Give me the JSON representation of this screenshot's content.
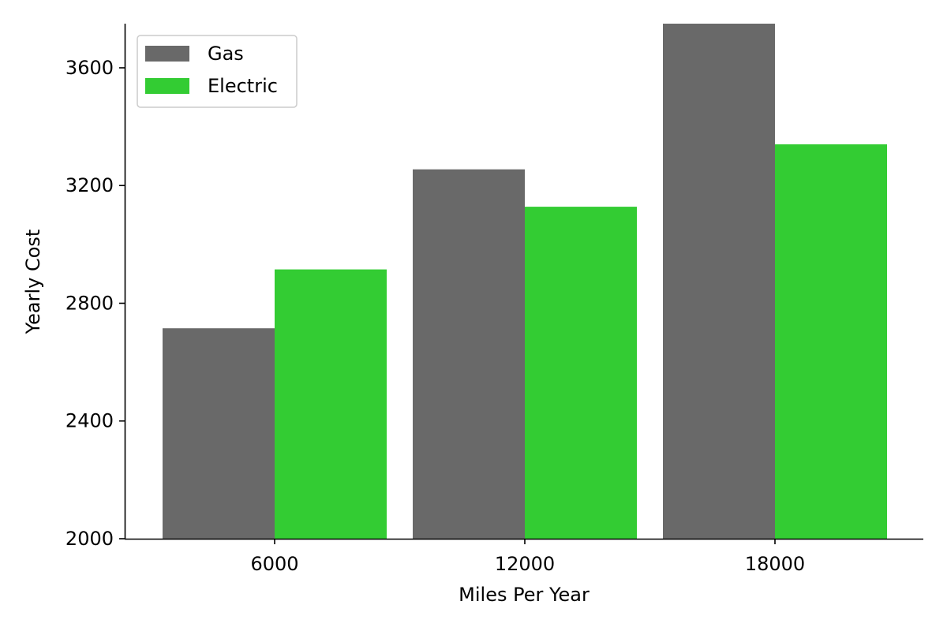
{
  "chart_data": {
    "type": "bar",
    "title": "",
    "xlabel": "Miles Per Year",
    "ylabel": "Yearly Cost",
    "categories": [
      "6000",
      "12000",
      "18000"
    ],
    "series": [
      {
        "name": "Gas",
        "color": "#696969",
        "values": [
          2715,
          3255,
          3750
        ]
      },
      {
        "name": "Electric",
        "color": "#33cc33",
        "values": [
          2915,
          3128,
          3340
        ]
      }
    ],
    "ylim": [
      2000,
      3750
    ],
    "yticks": [
      2000,
      2400,
      2800,
      3200,
      3600
    ],
    "grid": false,
    "legend_position": "top-left"
  }
}
